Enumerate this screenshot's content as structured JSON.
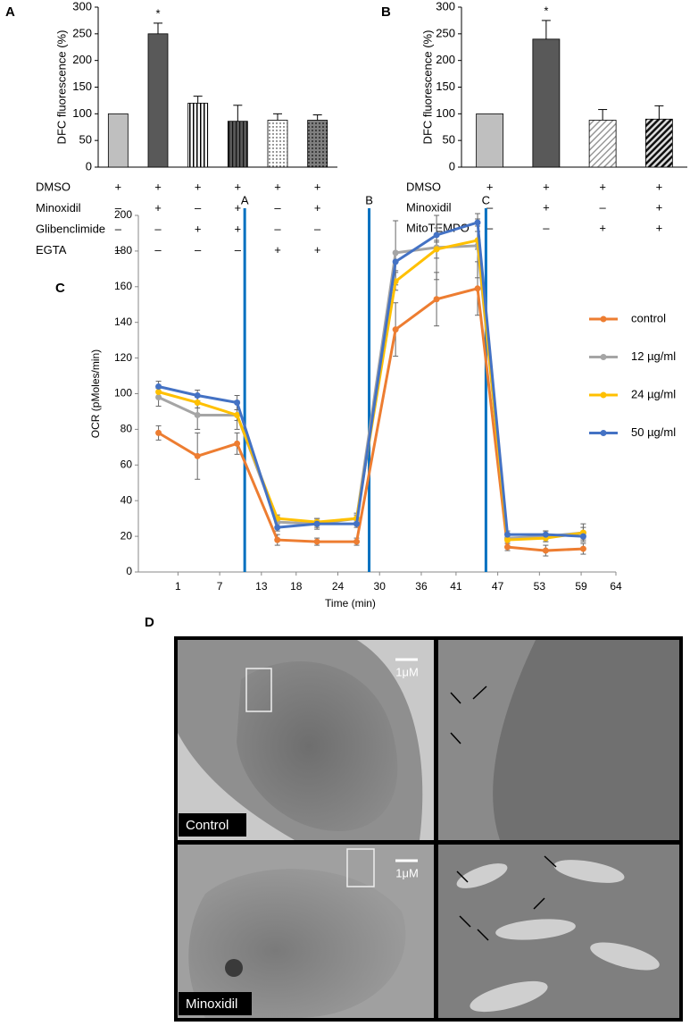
{
  "chart_data": [
    {
      "type": "bar",
      "panel": "A",
      "ylabel": "DFC fluorescence  (%)",
      "values": [
        100,
        250,
        120,
        86,
        88,
        88
      ],
      "errors": [
        0,
        20,
        13,
        30,
        12,
        10
      ],
      "colors": [
        "#bfbfbf",
        "#595959",
        "#ffffff",
        "#595959",
        "#ffffff",
        "#7f7f7f"
      ],
      "patterns": [
        null,
        null,
        "vstripe",
        "vstripe-dark",
        "dots",
        "dots-dark"
      ],
      "ylim": [
        0,
        300
      ],
      "yticks": [
        0,
        50,
        100,
        150,
        200,
        250,
        300
      ],
      "annotations": [
        {
          "text": "*",
          "category": 1
        }
      ],
      "conditions": [
        {
          "name": "DMSO",
          "marks": [
            "+",
            "+",
            "+",
            "+",
            "+",
            "+"
          ]
        },
        {
          "name": "Minoxidil",
          "marks": [
            "–",
            "+",
            "–",
            "+",
            "–",
            "+"
          ]
        },
        {
          "name": "Glibenclimide",
          "marks": [
            "–",
            "–",
            "+",
            "+",
            "–",
            "–"
          ]
        },
        {
          "name": "EGTA",
          "marks": [
            "–",
            "–",
            "–",
            "–",
            "+",
            "+"
          ]
        }
      ]
    },
    {
      "type": "bar",
      "panel": "B",
      "ylabel": "DFC fluorescence  (%)",
      "values": [
        100,
        240,
        88,
        90
      ],
      "errors": [
        0,
        35,
        20,
        25
      ],
      "colors": [
        "#bfbfbf",
        "#595959",
        "#ffffff",
        "#595959"
      ],
      "patterns": [
        null,
        null,
        "diag",
        "diag-dark"
      ],
      "ylim": [
        0,
        300
      ],
      "yticks": [
        0,
        50,
        100,
        150,
        200,
        250,
        300
      ],
      "annotations": [
        {
          "text": "*",
          "category": 1
        }
      ],
      "conditions": [
        {
          "name": "DMSO",
          "marks": [
            "+",
            "+",
            "+",
            "+"
          ]
        },
        {
          "name": "Minoxidil",
          "marks": [
            "–",
            "+",
            "–",
            "+"
          ]
        },
        {
          "name": "MitoTEMPO",
          "marks": [
            "–",
            "–",
            "+",
            "+"
          ]
        }
      ]
    },
    {
      "type": "line",
      "panel": "C",
      "xlabel": "Time (min)",
      "ylabel": "OCR (pMoles/min)",
      "x": [
        -1.8,
        3.8,
        9.5,
        15.3,
        21,
        26.7,
        32.3,
        38.2,
        44.1,
        48.4,
        53.9,
        59.3
      ],
      "series": [
        {
          "name": "control",
          "color": "#ed7d31",
          "values": [
            78,
            65,
            72,
            18,
            17,
            17,
            136,
            153,
            159,
            14,
            12,
            13
          ],
          "errors": [
            4,
            13,
            6,
            3,
            2,
            2,
            15,
            15,
            15,
            2,
            3,
            3
          ]
        },
        {
          "name": "12 µg/ml",
          "color": "#a5a5a5",
          "values": [
            98,
            88,
            88,
            28,
            27,
            30,
            179,
            182,
            183,
            19,
            20,
            22
          ],
          "errors": [
            5,
            8,
            8,
            3,
            3,
            3,
            18,
            18,
            18,
            2,
            3,
            5
          ]
        },
        {
          "name": "24 µg/ml",
          "color": "#ffc000",
          "values": [
            101,
            95,
            88,
            30,
            28,
            30,
            163,
            181,
            186,
            18,
            19,
            22
          ],
          "errors": [
            3,
            3,
            3,
            2,
            2,
            2,
            5,
            5,
            5,
            2,
            2,
            3
          ]
        },
        {
          "name": "50 µg/ml",
          "color": "#4472c4",
          "values": [
            104,
            99,
            95,
            25,
            27,
            27,
            174,
            189,
            196,
            21,
            21,
            20
          ],
          "errors": [
            3,
            3,
            4,
            2,
            2,
            2,
            5,
            4,
            2,
            2,
            2,
            2
          ]
        }
      ],
      "markers": [
        {
          "label": "A",
          "x": 10.6,
          "color": "#0070c0"
        },
        {
          "label": "B",
          "x": 28.5,
          "color": "#0070c0"
        },
        {
          "label": "C",
          "x": 45.3,
          "color": "#0070c0"
        }
      ],
      "xlim": [
        -4.7,
        64
      ],
      "xticks": [
        1,
        7,
        13,
        18,
        24,
        30,
        36,
        41,
        47,
        53,
        59,
        64
      ],
      "ylim": [
        0,
        200
      ],
      "yticks": [
        0,
        20,
        40,
        60,
        80,
        100,
        120,
        140,
        160,
        180,
        200
      ]
    }
  ],
  "micrograph": {
    "panel": "D",
    "rows": [
      {
        "label": "Control",
        "scale_bar": "1μM"
      },
      {
        "label": "Minoxidil",
        "scale_bar": "1μM"
      }
    ]
  }
}
